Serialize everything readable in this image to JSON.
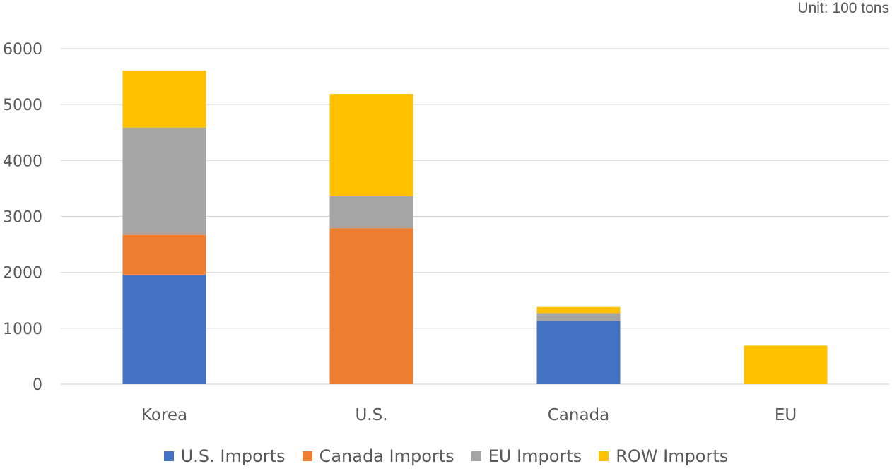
{
  "chart_data": {
    "type": "bar",
    "stacked": true,
    "unit_label": "Unit: 100 tons",
    "categories": [
      "Korea",
      "U.S.",
      "Canada",
      "EU"
    ],
    "series": [
      {
        "name": "U.S. Imports",
        "color": "#4472C4",
        "values": [
          1960,
          0,
          1130,
          0
        ]
      },
      {
        "name": "Canada Imports",
        "color": "#ED7D31",
        "values": [
          710,
          2790,
          0,
          0
        ]
      },
      {
        "name": "EU Imports",
        "color": "#A5A5A5",
        "values": [
          1920,
          570,
          140,
          0
        ]
      },
      {
        "name": "ROW Imports",
        "color": "#FFC000",
        "values": [
          1020,
          1830,
          110,
          690
        ]
      }
    ],
    "ylim": [
      0,
      6000
    ],
    "yticks": [
      0,
      1000,
      2000,
      3000,
      4000,
      5000,
      6000
    ],
    "grid": true,
    "legend_position": "bottom"
  }
}
